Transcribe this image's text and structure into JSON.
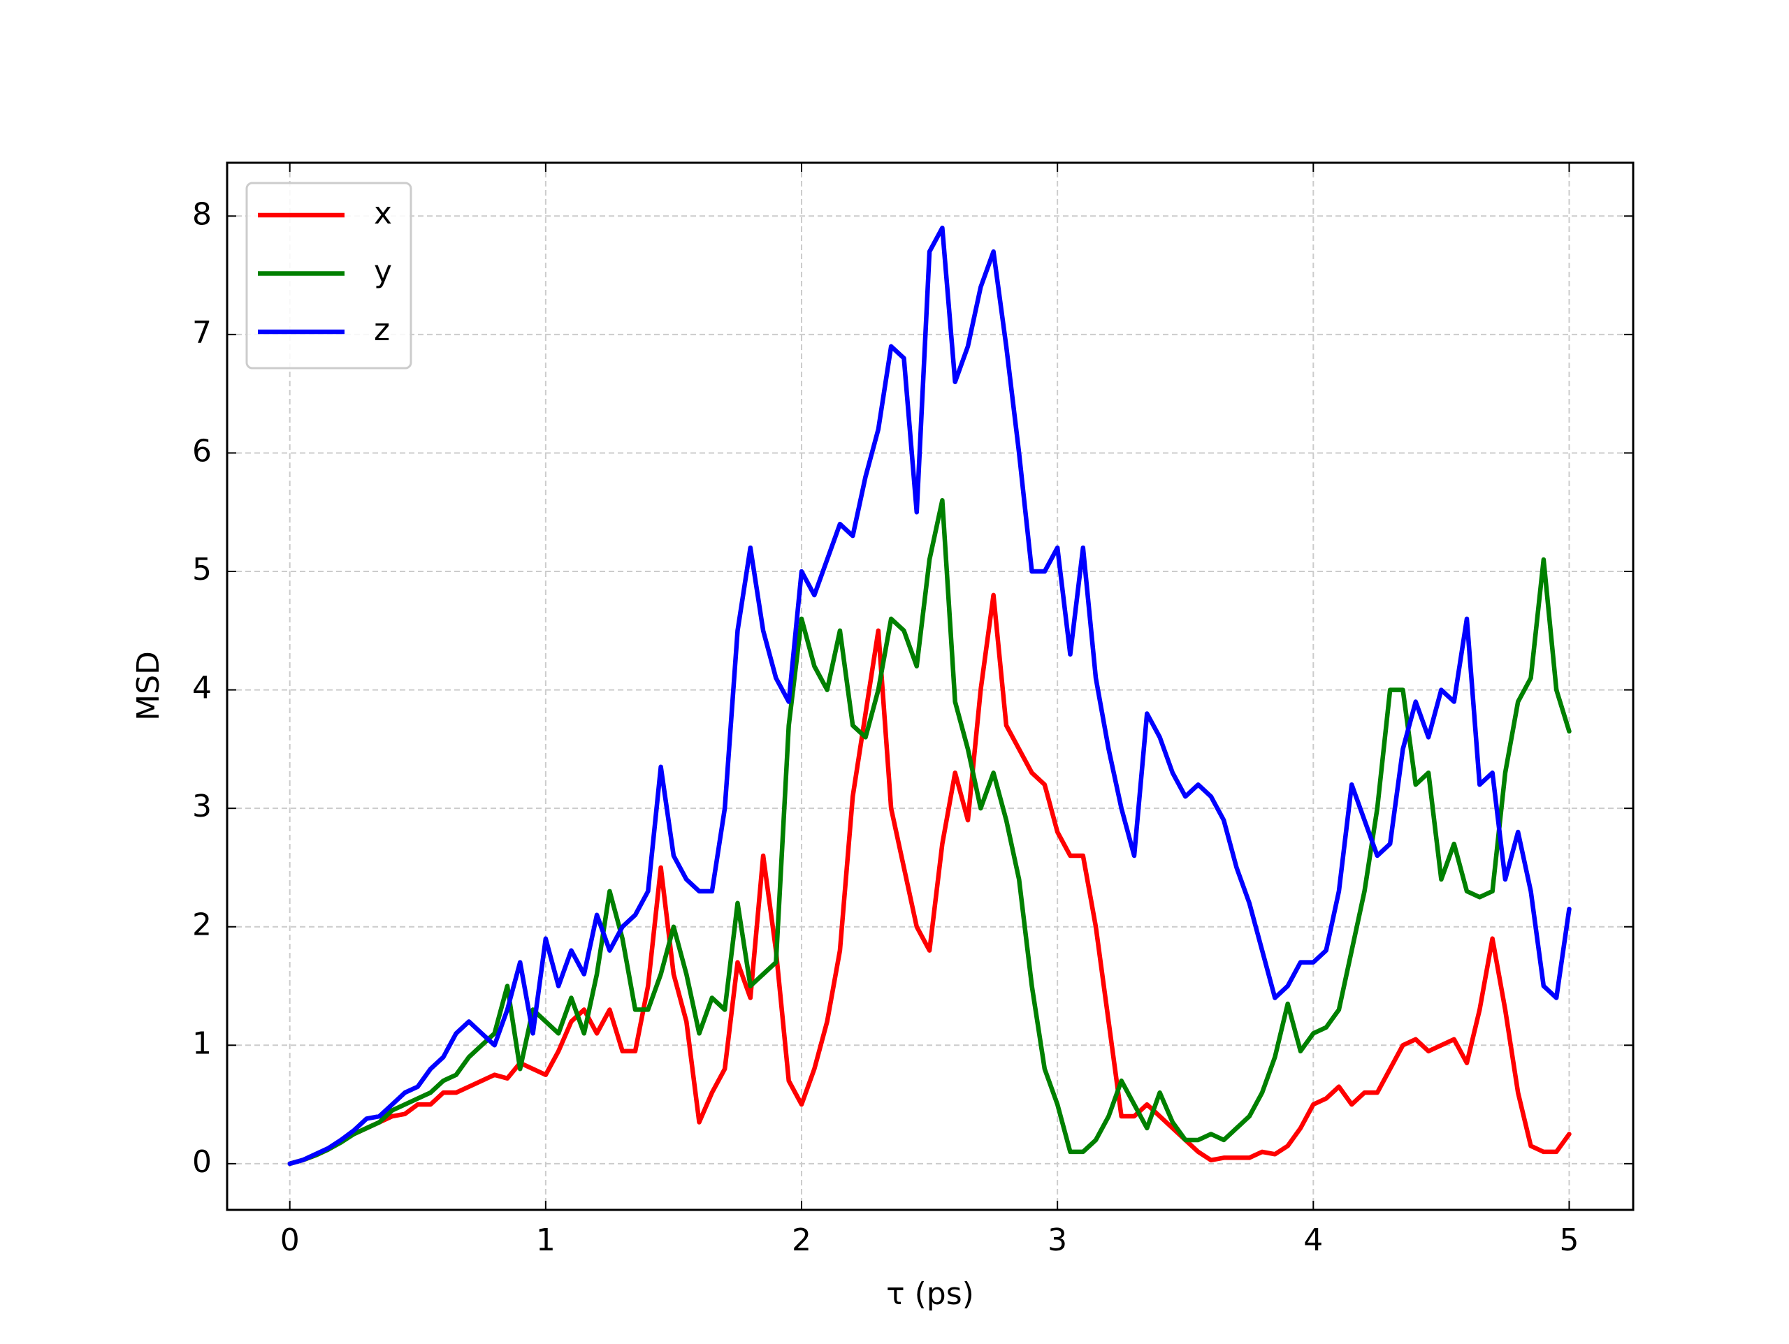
{
  "chart_data": {
    "type": "line",
    "x_label": "τ (ps)",
    "y_label": "MSD",
    "xlim": [
      -0.245,
      5.25
    ],
    "ylim": [
      -0.39,
      8.45
    ],
    "xticks": [
      0,
      1,
      2,
      3,
      4,
      5
    ],
    "yticks": [
      0,
      1,
      2,
      3,
      4,
      5,
      6,
      7,
      8
    ],
    "grid": true,
    "legend": "upper left",
    "x": [
      0,
      0.05,
      0.1,
      0.15,
      0.2,
      0.25,
      0.3,
      0.35,
      0.4,
      0.45,
      0.5,
      0.55,
      0.6,
      0.65,
      0.7,
      0.75,
      0.8,
      0.85,
      0.9,
      0.95,
      1,
      1.05,
      1.1,
      1.15,
      1.2,
      1.25,
      1.3,
      1.35,
      1.4,
      1.45,
      1.5,
      1.55,
      1.6,
      1.65,
      1.7,
      1.75,
      1.8,
      1.85,
      1.9,
      1.95,
      2,
      2.05,
      2.1,
      2.15,
      2.2,
      2.25,
      2.3,
      2.35,
      2.4,
      2.45,
      2.5,
      2.55,
      2.6,
      2.65,
      2.7,
      2.75,
      2.8,
      2.85,
      2.9,
      2.95,
      3,
      3.05,
      3.1,
      3.15,
      3.2,
      3.25,
      3.3,
      3.35,
      3.4,
      3.45,
      3.5,
      3.55,
      3.6,
      3.65,
      3.7,
      3.75,
      3.8,
      3.85,
      3.9,
      3.95,
      4,
      4.05,
      4.1,
      4.15,
      4.2,
      4.25,
      4.3,
      4.35,
      4.4,
      4.45,
      4.5,
      4.55,
      4.6,
      4.65,
      4.7,
      4.75,
      4.8,
      4.85,
      4.9,
      4.95,
      5
    ],
    "series": [
      {
        "name": "x",
        "color": "#ff0000",
        "values": [
          0,
          0.03,
          0.07,
          0.12,
          0.2,
          0.25,
          0.3,
          0.35,
          0.4,
          0.42,
          0.5,
          0.5,
          0.6,
          0.6,
          0.65,
          0.7,
          0.75,
          0.72,
          0.85,
          0.8,
          0.75,
          0.95,
          1.2,
          1.3,
          1.1,
          1.3,
          0.95,
          0.95,
          1.5,
          2.5,
          1.6,
          1.2,
          0.35,
          0.6,
          0.8,
          1.7,
          1.4,
          2.6,
          1.8,
          0.7,
          0.5,
          0.8,
          1.2,
          1.8,
          3.1,
          3.8,
          4.5,
          3.0,
          2.5,
          2.0,
          1.8,
          2.7,
          3.3,
          2.9,
          4.0,
          4.8,
          3.7,
          3.5,
          3.3,
          3.2,
          2.8,
          2.6,
          2.6,
          2.0,
          1.2,
          0.4,
          0.4,
          0.5,
          0.4,
          0.3,
          0.2,
          0.1,
          0.03,
          0.05,
          0.05,
          0.05,
          0.1,
          0.08,
          0.15,
          0.3,
          0.5,
          0.55,
          0.65,
          0.5,
          0.6,
          0.6,
          0.8,
          1.0,
          1.05,
          0.95,
          1.0,
          1.05,
          0.85,
          1.3,
          1.9,
          1.3,
          0.6,
          0.15,
          0.1,
          0.1,
          0.25
        ]
      },
      {
        "name": "y",
        "color": "#008000",
        "values": [
          0,
          0.03,
          0.07,
          0.12,
          0.18,
          0.25,
          0.3,
          0.35,
          0.45,
          0.5,
          0.55,
          0.6,
          0.7,
          0.75,
          0.9,
          1.0,
          1.1,
          1.5,
          0.8,
          1.3,
          1.2,
          1.1,
          1.4,
          1.1,
          1.6,
          2.3,
          1.9,
          1.3,
          1.3,
          1.6,
          2.0,
          1.6,
          1.1,
          1.4,
          1.3,
          2.2,
          1.5,
          1.6,
          1.7,
          3.7,
          4.6,
          4.2,
          4.0,
          4.5,
          3.7,
          3.6,
          4.0,
          4.6,
          4.5,
          4.2,
          5.1,
          5.6,
          3.9,
          3.5,
          3.0,
          3.3,
          2.9,
          2.4,
          1.5,
          0.8,
          0.5,
          0.1,
          0.1,
          0.2,
          0.4,
          0.7,
          0.5,
          0.3,
          0.6,
          0.35,
          0.2,
          0.2,
          0.25,
          0.2,
          0.3,
          0.4,
          0.6,
          0.9,
          1.35,
          0.95,
          1.1,
          1.15,
          1.3,
          1.8,
          2.3,
          3.0,
          4.0,
          4.0,
          3.2,
          3.3,
          2.4,
          2.7,
          2.3,
          2.25,
          2.3,
          3.3,
          3.9,
          4.1,
          5.1,
          4.0,
          3.65
        ]
      },
      {
        "name": "z",
        "color": "#0000ff",
        "values": [
          0,
          0.03,
          0.08,
          0.13,
          0.2,
          0.28,
          0.38,
          0.4,
          0.5,
          0.6,
          0.65,
          0.8,
          0.9,
          1.1,
          1.2,
          1.1,
          1.0,
          1.3,
          1.7,
          1.1,
          1.9,
          1.5,
          1.8,
          1.6,
          2.1,
          1.8,
          2.0,
          2.1,
          2.3,
          3.35,
          2.6,
          2.4,
          2.3,
          2.3,
          3.0,
          4.5,
          5.2,
          4.5,
          4.1,
          3.9,
          5.0,
          4.8,
          5.1,
          5.4,
          5.3,
          5.8,
          6.2,
          6.9,
          6.8,
          5.5,
          7.7,
          7.9,
          6.6,
          6.9,
          7.4,
          7.7,
          6.9,
          6.0,
          5.0,
          5.0,
          5.2,
          4.3,
          5.2,
          4.1,
          3.5,
          3.0,
          2.6,
          3.8,
          3.6,
          3.3,
          3.1,
          3.2,
          3.1,
          2.9,
          2.5,
          2.2,
          1.8,
          1.4,
          1.5,
          1.7,
          1.7,
          1.8,
          2.3,
          3.2,
          2.9,
          2.6,
          2.7,
          3.5,
          3.9,
          3.6,
          4.0,
          3.9,
          4.6,
          3.2,
          3.3,
          2.4,
          2.8,
          2.3,
          1.5,
          1.4,
          2.15
        ]
      }
    ]
  }
}
